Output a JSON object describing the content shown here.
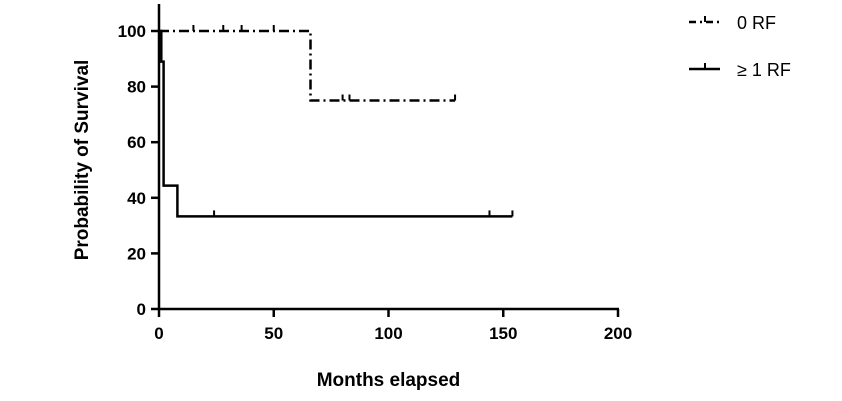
{
  "chart_data": {
    "type": "line",
    "subtype": "kaplan-meier-step",
    "title": "",
    "xlabel": "Months elapsed",
    "ylabel": "Probability of Survival",
    "xlim": [
      0,
      200
    ],
    "ylim": [
      0,
      110
    ],
    "xticks": [
      "0",
      "50",
      "100",
      "150",
      "200"
    ],
    "yticks": [
      "0",
      "20",
      "40",
      "60",
      "80",
      "100"
    ],
    "xtick_values": [
      0,
      50,
      100,
      150,
      200
    ],
    "ytick_values": [
      0,
      20,
      40,
      60,
      80,
      100
    ],
    "grid": false,
    "legend_position": "top-right",
    "series": [
      {
        "name": "0 RF",
        "line_style": "dash-dot",
        "color": "#000000",
        "steps": [
          [
            0,
            100
          ],
          [
            66,
            100
          ],
          [
            66,
            75
          ],
          [
            129,
            75
          ]
        ],
        "censored": [
          [
            15,
            100
          ],
          [
            28,
            100
          ],
          [
            36,
            100
          ],
          [
            50,
            100
          ],
          [
            80,
            75
          ],
          [
            83,
            75
          ],
          [
            129,
            75
          ]
        ]
      },
      {
        "name": "≥ 1 RF",
        "line_style": "solid",
        "color": "#000000",
        "steps": [
          [
            0,
            100
          ],
          [
            1,
            100
          ],
          [
            1,
            89
          ],
          [
            2,
            89
          ],
          [
            2,
            44.4
          ],
          [
            8,
            44.4
          ],
          [
            8,
            33.3
          ],
          [
            154,
            33.3
          ]
        ],
        "censored": [
          [
            24,
            33.3
          ],
          [
            144,
            33.3
          ],
          [
            154,
            33.3
          ]
        ]
      }
    ]
  }
}
